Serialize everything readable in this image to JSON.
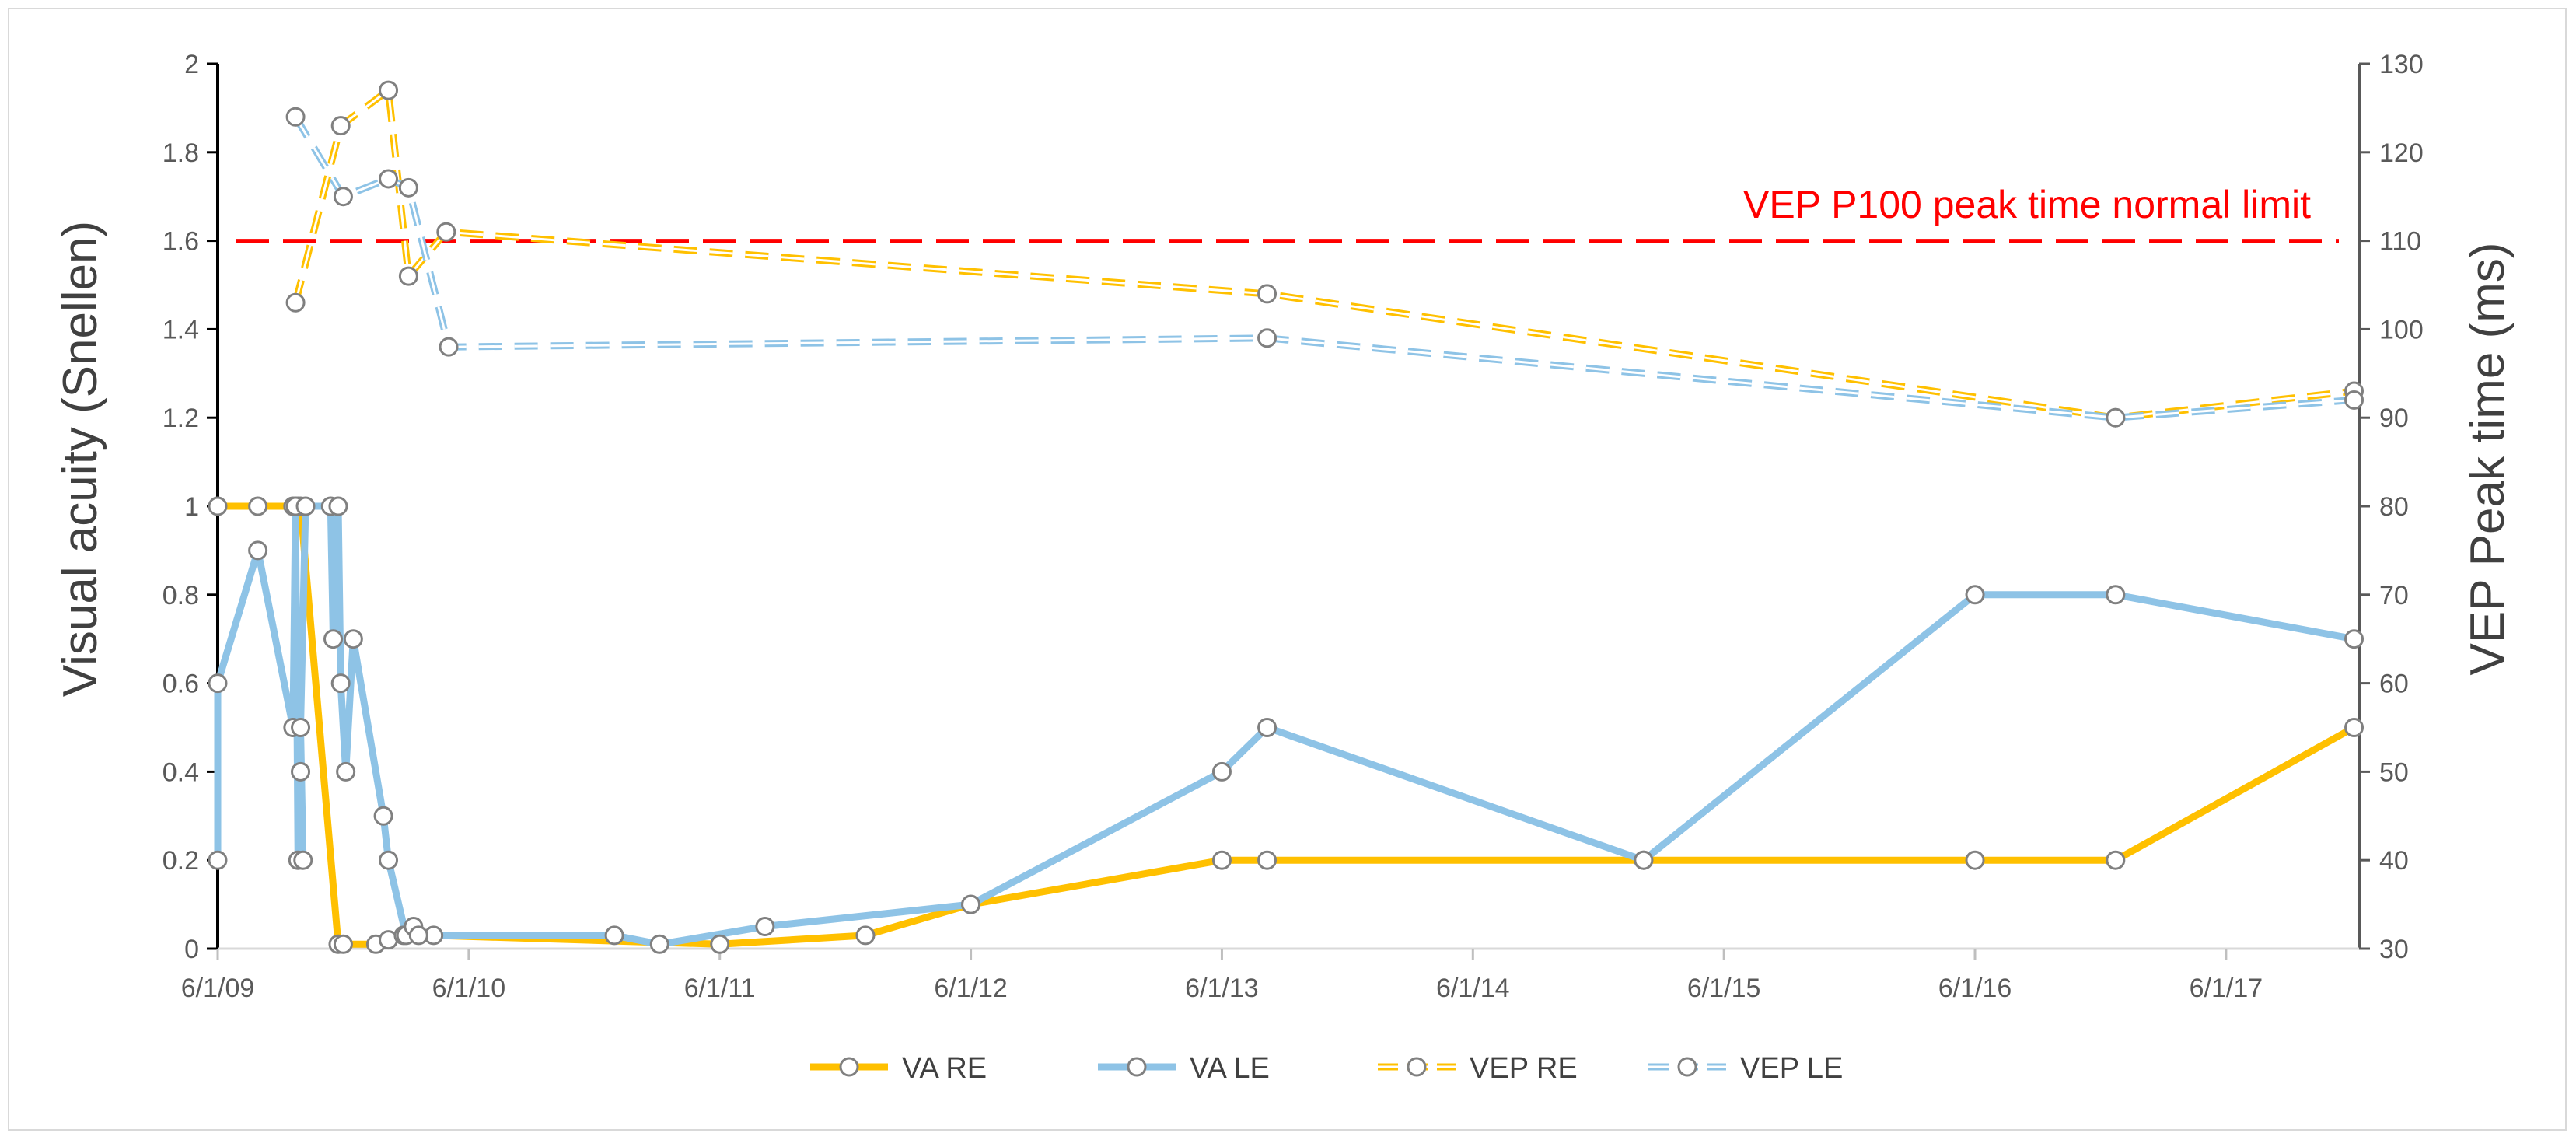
{
  "chart_data": {
    "type": "line",
    "title": "",
    "ylabel": "Visual acuity (Snellen)",
    "y2label": "VEP Peak time (ms)",
    "xlabel": "",
    "ylim": [
      0,
      2
    ],
    "y2lim": [
      30,
      130
    ],
    "yticks": [
      "0",
      "0.2",
      "0.4",
      "0.6",
      "0.8",
      "1",
      "1.2",
      "1.4",
      "1.6",
      "1.8",
      "2"
    ],
    "y2ticks": [
      "30",
      "40",
      "50",
      "60",
      "70",
      "80",
      "90",
      "100",
      "110",
      "120",
      "130"
    ],
    "xlim": [
      2009.42,
      2017.95
    ],
    "xticks": [
      {
        "label": "6/1/09",
        "value": 2009.42
      },
      {
        "label": "6/1/10",
        "value": 2010.42
      },
      {
        "label": "6/1/11",
        "value": 2011.42
      },
      {
        "label": "6/1/12",
        "value": 2012.42
      },
      {
        "label": "6/1/13",
        "value": 2013.42
      },
      {
        "label": "6/1/14",
        "value": 2014.42
      },
      {
        "label": "6/1/15",
        "value": 2015.42
      },
      {
        "label": "6/1/16",
        "value": 2016.42
      },
      {
        "label": "6/1/17",
        "value": 2017.42
      }
    ],
    "reference_line": {
      "axis": "y2",
      "value": 110,
      "label": "VEP P100 peak time normal limit",
      "color": "#ff0000"
    },
    "legend_position": "bottom",
    "series": [
      {
        "name": "VA RE",
        "axis": "y",
        "color": "#ffc000",
        "style": "solid",
        "x": [
          2009.42,
          2009.58,
          2009.72,
          2009.74,
          2009.75,
          2009.9,
          2009.92,
          2010.05,
          2010.1,
          2010.16,
          2010.2,
          2010.28,
          2011.42,
          2012.0,
          2012.42,
          2013.42,
          2013.6,
          2015.1,
          2016.42,
          2016.98,
          2017.93
        ],
        "y": [
          1.0,
          1.0,
          1.0,
          1.0,
          1.0,
          0.01,
          0.01,
          0.01,
          0.02,
          0.03,
          0.04,
          0.03,
          0.01,
          0.03,
          0.1,
          0.2,
          0.2,
          0.2,
          0.2,
          0.2,
          0.5
        ]
      },
      {
        "name": "VA LE",
        "axis": "y",
        "color": "#8ec3e6",
        "style": "solid",
        "x": [
          2009.42,
          2009.42,
          2009.58,
          2009.72,
          2009.73,
          2009.74,
          2009.75,
          2009.76,
          2009.75,
          2009.77,
          2009.87,
          2009.88,
          2009.9,
          2009.91,
          2009.93,
          2009.96,
          2010.08,
          2010.1,
          2010.17,
          2010.2,
          2010.22,
          2011.0,
          2011.18,
          2011.6,
          2012.42,
          2013.42,
          2013.6,
          2015.1,
          2016.42,
          2016.98,
          2017.93
        ],
        "y": [
          0.2,
          0.6,
          0.9,
          0.5,
          1.0,
          0.2,
          0.4,
          0.2,
          0.5,
          1.0,
          1.0,
          0.7,
          1.0,
          0.6,
          0.4,
          0.7,
          0.3,
          0.2,
          0.03,
          0.05,
          0.03,
          0.03,
          0.01,
          0.05,
          0.1,
          0.4,
          0.5,
          0.2,
          0.8,
          0.8,
          0.7
        ]
      },
      {
        "name": "VEP RE",
        "axis": "y2",
        "color": "#ffc000",
        "style": "dashed",
        "x": [
          2009.73,
          2009.91,
          2010.1,
          2010.18,
          2010.33,
          2013.6,
          2016.98,
          2017.93
        ],
        "y": [
          103,
          123,
          127,
          106,
          111,
          104,
          90,
          93
        ]
      },
      {
        "name": "VEP LE",
        "axis": "y2",
        "color": "#8ec3e6",
        "style": "dashed",
        "x": [
          2009.73,
          2009.92,
          2010.1,
          2010.18,
          2010.34,
          2013.6,
          2016.98,
          2017.93
        ],
        "y": [
          124,
          115,
          117,
          116,
          98,
          99,
          90,
          92
        ]
      }
    ]
  }
}
